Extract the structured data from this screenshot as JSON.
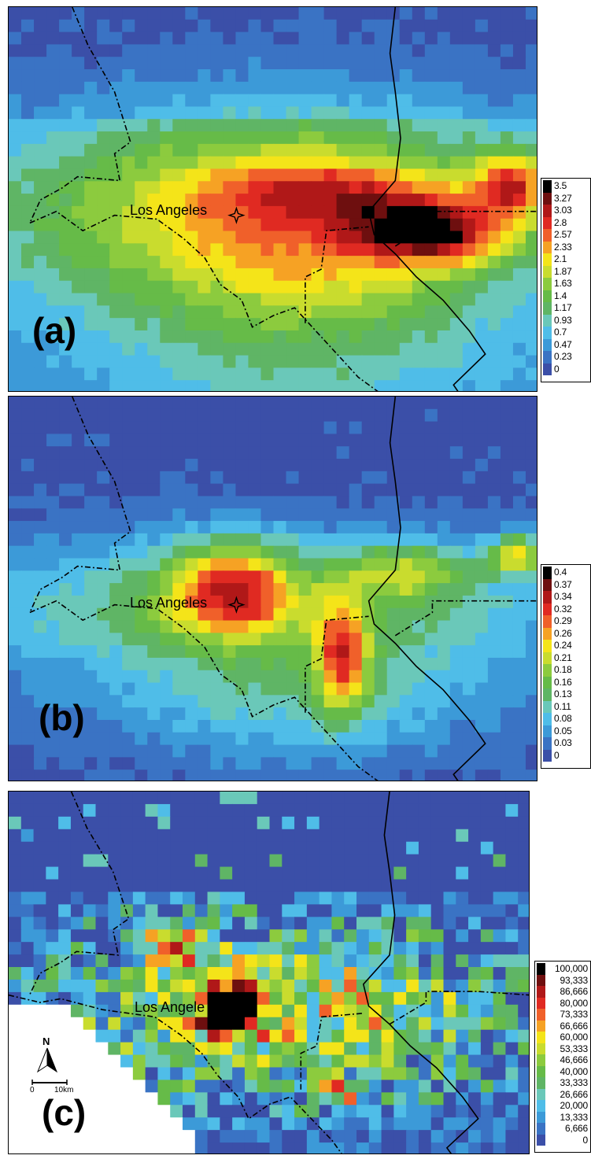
{
  "city_label": "Los Angeles",
  "panels": [
    {
      "id": "a",
      "label": "(a)",
      "legend": [
        "3.5",
        "3.27",
        "3.03",
        "2.8",
        "2.57",
        "2.33",
        "2.1",
        "1.87",
        "1.63",
        "1.4",
        "1.17",
        "0.93",
        "0.7",
        "0.47",
        "0.23",
        "0"
      ]
    },
    {
      "id": "b",
      "label": "(b)",
      "legend": [
        "0.4",
        "0.37",
        "0.34",
        "0.32",
        "0.29",
        "0.26",
        "0.24",
        "0.21",
        "0.18",
        "0.16",
        "0.13",
        "0.11",
        "0.08",
        "0.05",
        "0.03",
        "0"
      ]
    },
    {
      "id": "c",
      "label": "(c)",
      "city_label_visible": "Los Angele",
      "legend": [
        "100,000",
        "93,333",
        "86,666",
        "80,000",
        "73,333",
        "66,666",
        "60,000",
        "53,333",
        "46,666",
        "40,000",
        "33,333",
        "26,666",
        "20,000",
        "13,333",
        "6,666",
        "0"
      ]
    }
  ],
  "scale_bar": {
    "north_label": "N",
    "start": "0",
    "end": "10km"
  },
  "palette": [
    "#000000",
    "#6e0f0f",
    "#b01818",
    "#e02a22",
    "#f0602a",
    "#f6a224",
    "#f4e419",
    "#c9dc2e",
    "#8ccb3e",
    "#66bb48",
    "#5fb565",
    "#6ac8b9",
    "#4fbde8",
    "#3c9ad8",
    "#3a73c4",
    "#3b4fa8"
  ]
}
